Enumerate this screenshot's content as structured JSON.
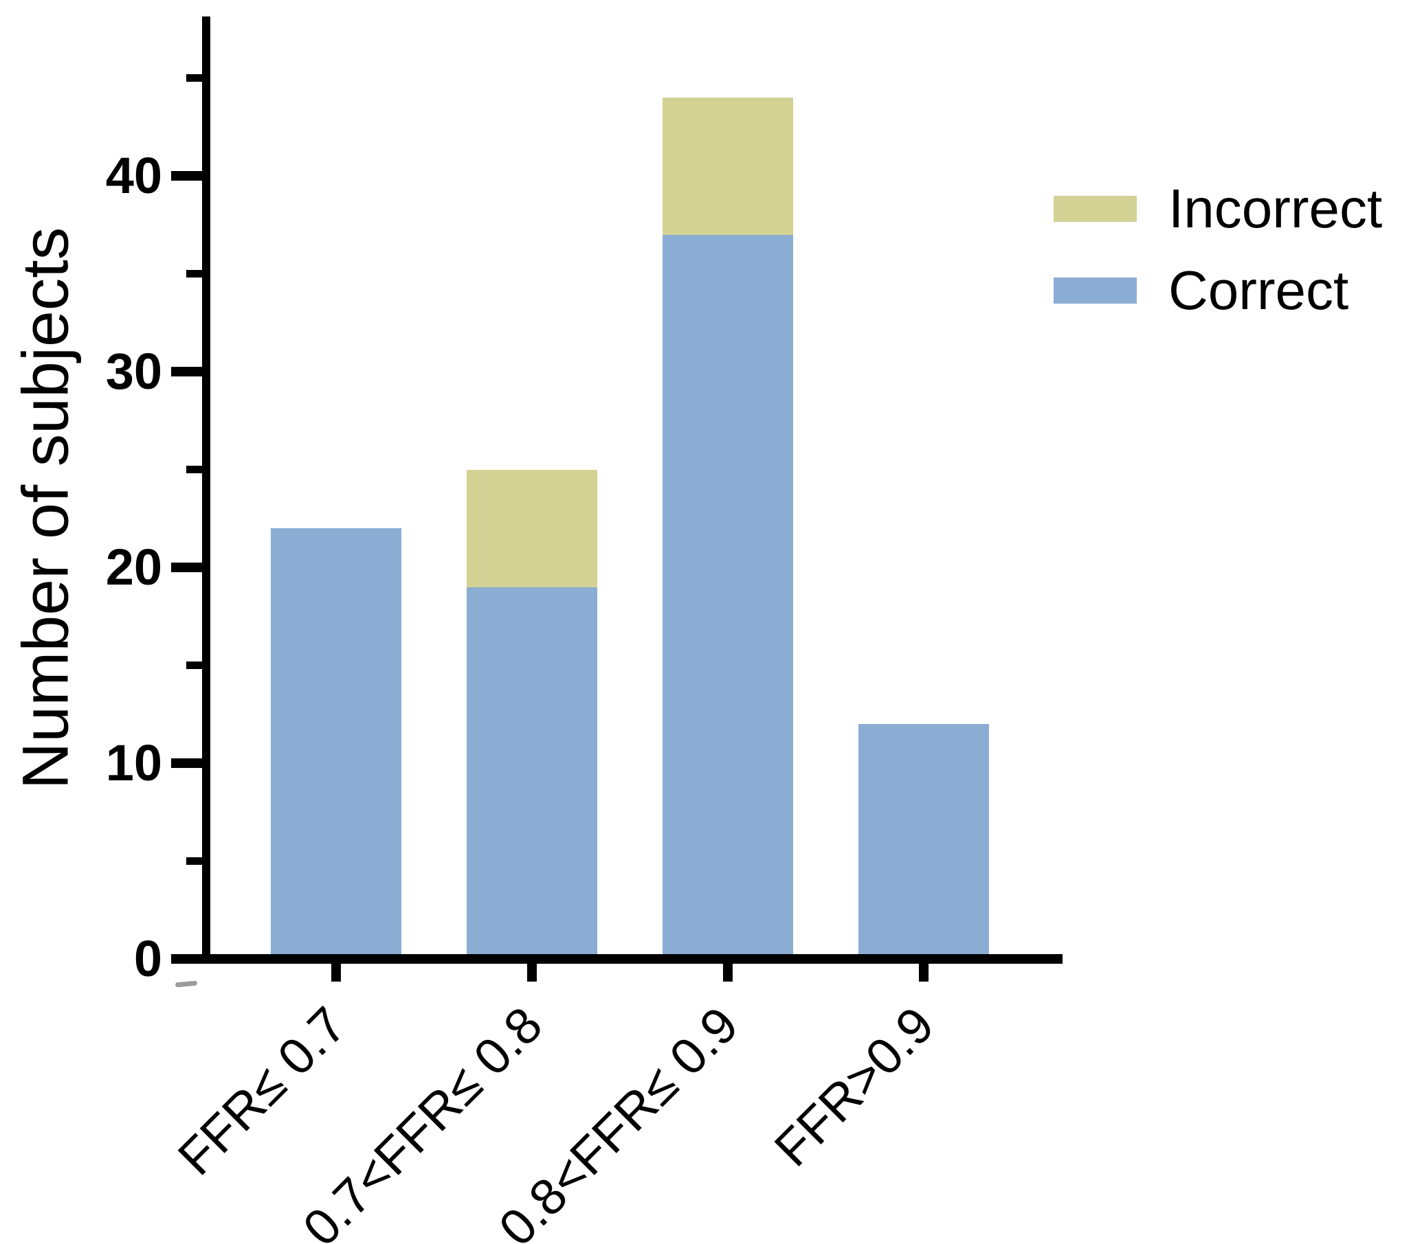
{
  "chart_data": {
    "type": "bar",
    "stacked": true,
    "title": "",
    "ylabel": "Number of subjects",
    "xlabel": "",
    "categories": [
      "FFR≤ 0.7",
      "0.7<FFR≤ 0.8",
      "0.8<FFR≤ 0.9",
      "FFR>0.9"
    ],
    "series": [
      {
        "name": "Correct",
        "color": "#8badd3",
        "values": [
          22,
          19,
          37,
          12
        ]
      },
      {
        "name": "Incorrect",
        "color": "#d2d295",
        "values": [
          0,
          6,
          7,
          0
        ]
      }
    ],
    "stacked_totals": [
      22,
      25,
      44,
      12
    ],
    "ylim": [
      0,
      48
    ],
    "yticks_major": [
      0,
      10,
      20,
      30,
      40
    ],
    "yticks_minor": [
      5,
      15,
      25,
      35,
      45
    ],
    "x_tick_label_rotation_deg": 45,
    "grid": false,
    "legend": {
      "position": "upper-right",
      "entries": [
        {
          "label": "Incorrect",
          "color": "#d2d295"
        },
        {
          "label": "Correct",
          "color": "#8badd3"
        }
      ]
    },
    "axis_color": "#000000",
    "background": "#ffffff"
  }
}
